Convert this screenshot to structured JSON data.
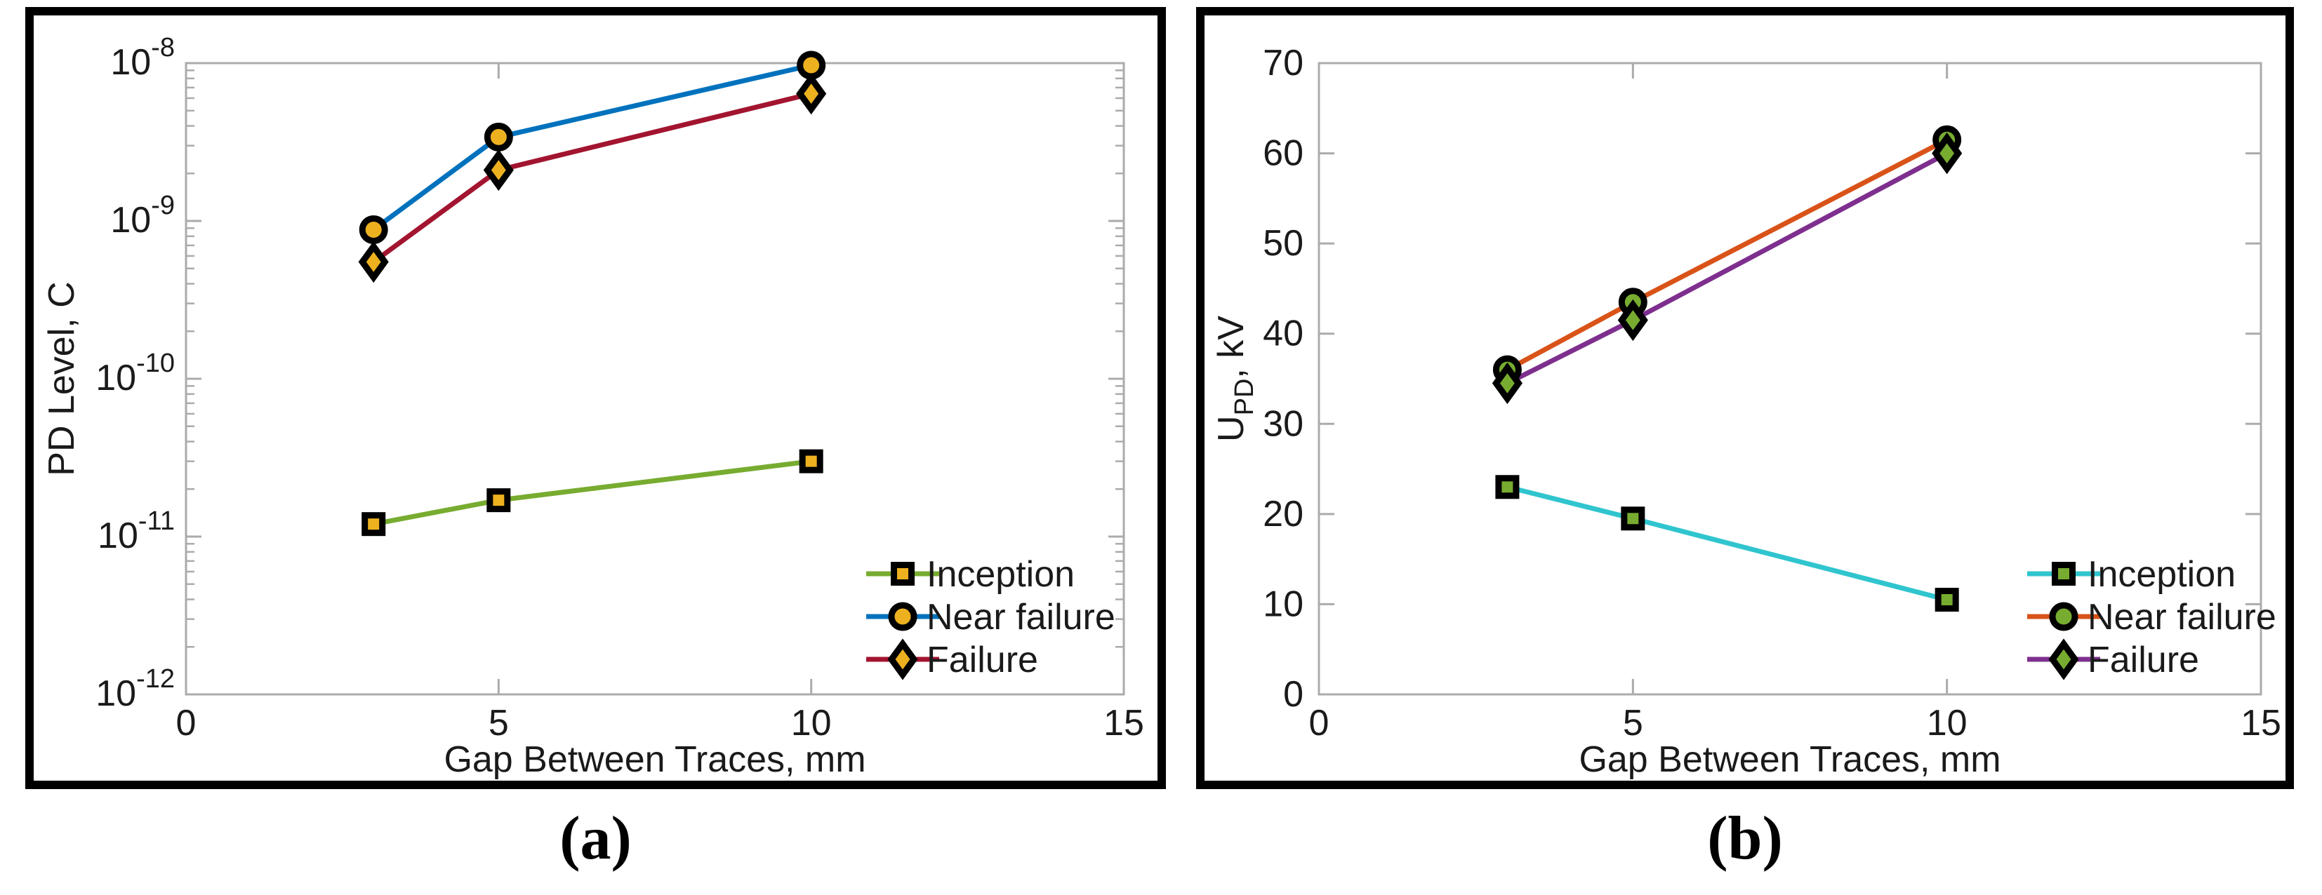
{
  "captions": {
    "a": "(a)",
    "b": "(b)"
  },
  "colors": {
    "axis_line": "#ababab",
    "text": "#1a1a1a",
    "marker_edge": "#000000",
    "panel_border": "#000000",
    "background": "#ffffff"
  },
  "chart_data": [
    {
      "id": "a",
      "type": "line",
      "title": "",
      "xlabel": "Gap Between Traces, mm",
      "ylabel": "PD Level, C",
      "ylabel_parts": [
        {
          "t": "PD Level, C"
        }
      ],
      "xlim": [
        0,
        15
      ],
      "x_ticks": [
        0,
        5,
        10,
        15
      ],
      "yscale": "log",
      "ylim": [
        1e-12,
        1e-08
      ],
      "y_tick_exponents": [
        -8,
        -9,
        -10,
        -11,
        -12
      ],
      "grid": false,
      "x": [
        3,
        5,
        10
      ],
      "series": [
        {
          "name": "Inception",
          "marker": "square",
          "marker_fill": "#EDB120",
          "line_color": "#77AC30",
          "values": [
            1.2e-11,
            1.7e-11,
            3e-11
          ]
        },
        {
          "name": "Near failure",
          "marker": "circle",
          "marker_fill": "#EDB120",
          "line_color": "#0072BD",
          "values": [
            8.8e-10,
            3.4e-09,
            9.7e-09
          ]
        },
        {
          "name": "Failure",
          "marker": "diamond",
          "marker_fill": "#EDB120",
          "line_color": "#A2142F",
          "values": [
            5.5e-10,
            2.1e-09,
            6.4e-09
          ]
        }
      ],
      "legend": {
        "labels": [
          "Inception",
          "Near failure",
          "Failure"
        ],
        "position": "lower-right"
      }
    },
    {
      "id": "b",
      "type": "line",
      "title": "",
      "xlabel": "Gap Between Traces, mm",
      "ylabel": "U_PD, kV",
      "ylabel_parts": [
        {
          "t": "U"
        },
        {
          "t": "PD",
          "s": "sub"
        },
        {
          "t": ", kV"
        }
      ],
      "xlim": [
        0,
        15
      ],
      "x_ticks": [
        0,
        5,
        10,
        15
      ],
      "yscale": "linear",
      "ylim": [
        0,
        70
      ],
      "y_tick_step": 10,
      "grid": false,
      "x": [
        3,
        5,
        10
      ],
      "series": [
        {
          "name": "Inception",
          "marker": "square",
          "marker_fill": "#77AC30",
          "line_color": "#30C5CE",
          "values": [
            23,
            19.5,
            10.5
          ]
        },
        {
          "name": "Near failure",
          "marker": "circle",
          "marker_fill": "#77AC30",
          "line_color": "#D95319",
          "values": [
            36,
            43.5,
            61.5
          ]
        },
        {
          "name": "Failure",
          "marker": "diamond",
          "marker_fill": "#77AC30",
          "line_color": "#7E2F8E",
          "values": [
            34.5,
            41.5,
            60
          ]
        }
      ],
      "legend": {
        "labels": [
          "Inception",
          "Near failure",
          "Failure"
        ],
        "position": "lower-right"
      }
    }
  ]
}
